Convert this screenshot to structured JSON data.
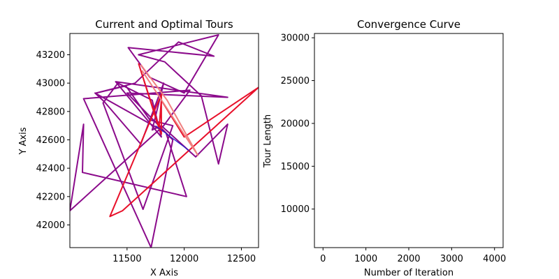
{
  "chart_data": [
    {
      "type": "line",
      "title": "Current and Optimal Tours",
      "xlabel": "X Axis",
      "ylabel": "Y Axis",
      "xlim": [
        11000,
        12650
      ],
      "ylim": [
        41840,
        43350
      ],
      "xticks": [
        11500,
        12000,
        12500
      ],
      "yticks": [
        42000,
        42200,
        42400,
        42600,
        42800,
        43000,
        43200
      ],
      "grid": false,
      "colors": {
        "current": "#8b0a8b",
        "optimal": "#e8102a",
        "highlight": "#f08080",
        "alt": "#2222cc"
      },
      "series": [
        {
          "role": "current",
          "x": [
            11000,
            11120,
            11110,
            12020,
            11840,
            11220,
            11300,
            11620,
            11820,
            11720,
            11800,
            12100,
            12380,
            12300,
            12150,
            11830,
            11600,
            12300,
            12000,
            11700,
            11510,
            12260,
            11950,
            11570,
            11230,
            11490,
            11700,
            11900,
            11640,
            11290,
            11420,
            11720,
            11800,
            11400,
            12380,
            11500,
            11900,
            11710,
            11120,
            12050,
            11820,
            11000
          ],
          "y": [
            42100,
            42710,
            42370,
            42200,
            42650,
            42930,
            42870,
            42570,
            43000,
            42670,
            42700,
            42480,
            42710,
            42430,
            42910,
            43150,
            43200,
            43340,
            42930,
            43040,
            43250,
            43190,
            43290,
            43000,
            42930,
            42980,
            42740,
            42700,
            42110,
            42860,
            43000,
            42880,
            42620,
            43010,
            42900,
            42930,
            42600,
            41840,
            42890,
            42950,
            42700,
            42100
          ]
        },
        {
          "role": "optimal",
          "x": [
            11600,
            11780,
            11800,
            12000,
            12650,
            11460,
            11350,
            11800,
            11800,
            11600
          ],
          "y": [
            43140,
            42680,
            42880,
            42620,
            42970,
            42100,
            42060,
            42920,
            42640,
            43140
          ]
        },
        {
          "role": "highlight",
          "x": [
            11630,
            12120,
            11850,
            11620
          ],
          "y": [
            43090,
            42490,
            42880,
            43130
          ]
        },
        {
          "role": "alt",
          "x": [
            11750,
            12050
          ],
          "y": [
            42700,
            42520
          ]
        }
      ]
    },
    {
      "type": "line",
      "title": "Convergence Curve",
      "xlabel": "Number of Iteration",
      "ylabel": "Tour Length",
      "xlim": [
        -200,
        4200
      ],
      "ylim": [
        5500,
        30500
      ],
      "xticks": [
        0,
        1000,
        2000,
        3000,
        4000
      ],
      "yticks": [
        10000,
        15000,
        20000,
        25000,
        30000
      ],
      "grid": false,
      "series": []
    }
  ]
}
